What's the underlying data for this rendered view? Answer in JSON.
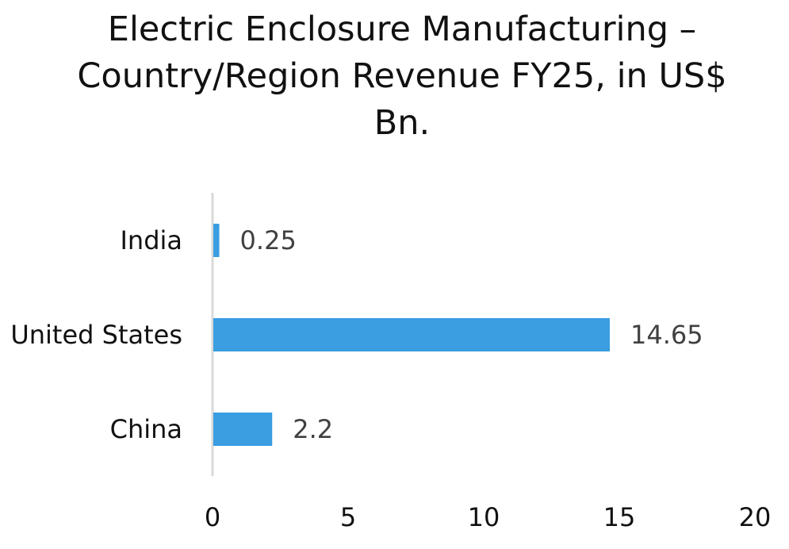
{
  "chart_data": {
    "type": "bar",
    "orientation": "horizontal",
    "title": "Electric Enclosure Manufacturing – Country/Region Revenue FY25, in US$ Bn.",
    "categories": [
      "India",
      "United States",
      "China"
    ],
    "values": [
      0.25,
      14.65,
      2.2
    ],
    "value_labels": [
      "0.25",
      "14.65",
      "2.2"
    ],
    "xlim": [
      0,
      20
    ],
    "x_ticks": [
      0,
      5,
      10,
      15,
      20
    ],
    "xlabel": "",
    "ylabel": "",
    "grid": false,
    "bar_color": "#3a9ee0",
    "axis_color": "#d9d9d9"
  }
}
